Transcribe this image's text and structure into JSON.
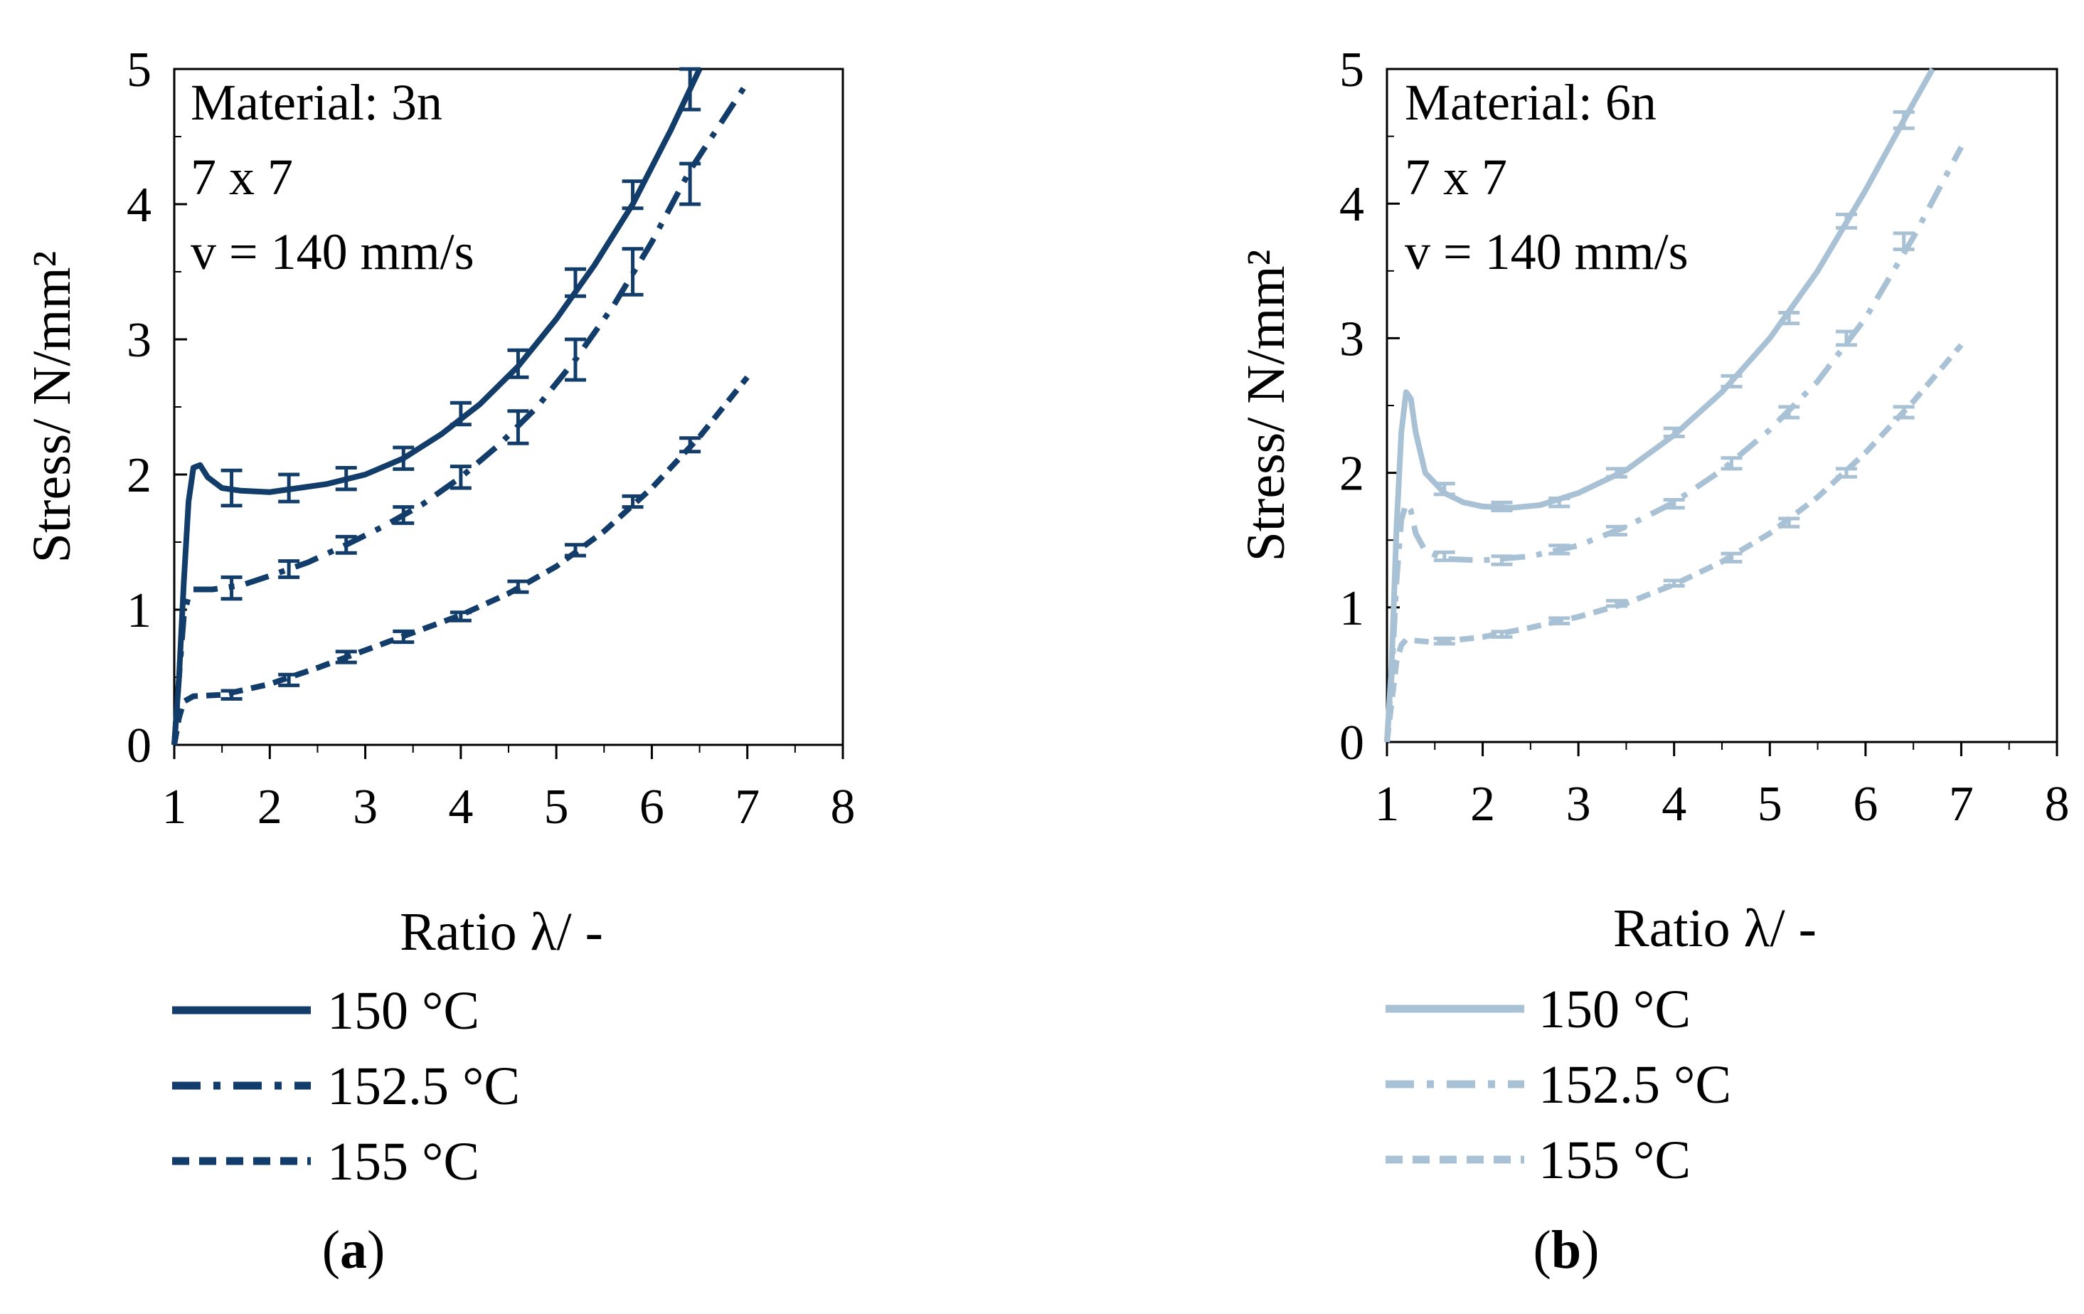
{
  "chart_data": [
    {
      "type": "line",
      "panel_id": "a",
      "caption": "(a)",
      "caption_letter": "a",
      "color": "#123c69",
      "annotations": [
        "Material: 3n",
        "7 x 7",
        "v = 140 mm/s"
      ],
      "xlabel": "Ratio λ/ -",
      "ylabel": "Stress/ N/mm²",
      "xlim": [
        1,
        8
      ],
      "ylim": [
        0,
        5
      ],
      "xticks": [
        "1",
        "2",
        "3",
        "4",
        "5",
        "6",
        "7",
        "8"
      ],
      "yticks": [
        "0",
        "1",
        "2",
        "3",
        "4",
        "5"
      ],
      "series": [
        {
          "name": "150 °C",
          "style": "solid",
          "points": [
            [
              1.0,
              0.0
            ],
            [
              1.05,
              0.5
            ],
            [
              1.1,
              1.2
            ],
            [
              1.15,
              1.8
            ],
            [
              1.2,
              2.05
            ],
            [
              1.27,
              2.07
            ],
            [
              1.35,
              1.98
            ],
            [
              1.5,
              1.9
            ],
            [
              1.7,
              1.88
            ],
            [
              2.0,
              1.87
            ],
            [
              2.3,
              1.9
            ],
            [
              2.6,
              1.93
            ],
            [
              3.0,
              2.0
            ],
            [
              3.4,
              2.12
            ],
            [
              3.8,
              2.3
            ],
            [
              4.2,
              2.52
            ],
            [
              4.6,
              2.8
            ],
            [
              5.0,
              3.15
            ],
            [
              5.4,
              3.55
            ],
            [
              5.8,
              4.0
            ],
            [
              6.2,
              4.55
            ],
            [
              6.5,
              5.0
            ]
          ],
          "error_bars": [
            [
              1.6,
              1.9,
              0.13
            ],
            [
              2.2,
              1.9,
              0.1
            ],
            [
              2.8,
              1.97,
              0.08
            ],
            [
              3.4,
              2.12,
              0.08
            ],
            [
              4.0,
              2.45,
              0.08
            ],
            [
              4.6,
              2.82,
              0.1
            ],
            [
              5.2,
              3.42,
              0.1
            ],
            [
              5.8,
              4.07,
              0.1
            ],
            [
              6.4,
              4.85,
              0.15
            ]
          ]
        },
        {
          "name": "152.5 °C",
          "style": "dashdot",
          "points": [
            [
              1.0,
              0.0
            ],
            [
              1.05,
              0.5
            ],
            [
              1.1,
              0.95
            ],
            [
              1.15,
              1.1
            ],
            [
              1.2,
              1.15
            ],
            [
              1.4,
              1.15
            ],
            [
              1.7,
              1.18
            ],
            [
              2.0,
              1.25
            ],
            [
              2.4,
              1.35
            ],
            [
              2.8,
              1.48
            ],
            [
              3.2,
              1.62
            ],
            [
              3.6,
              1.78
            ],
            [
              4.0,
              1.98
            ],
            [
              4.4,
              2.22
            ],
            [
              4.8,
              2.5
            ],
            [
              5.2,
              2.85
            ],
            [
              5.6,
              3.25
            ],
            [
              6.0,
              3.72
            ],
            [
              6.4,
              4.25
            ],
            [
              7.0,
              4.9
            ]
          ],
          "error_bars": [
            [
              1.6,
              1.16,
              0.08
            ],
            [
              2.2,
              1.3,
              0.06
            ],
            [
              2.8,
              1.48,
              0.06
            ],
            [
              3.4,
              1.7,
              0.06
            ],
            [
              4.0,
              1.98,
              0.08
            ],
            [
              4.6,
              2.35,
              0.12
            ],
            [
              5.2,
              2.85,
              0.15
            ],
            [
              5.8,
              3.5,
              0.17
            ],
            [
              6.4,
              4.15,
              0.15
            ]
          ]
        },
        {
          "name": "155 °C",
          "style": "dashed",
          "points": [
            [
              1.0,
              0.0
            ],
            [
              1.05,
              0.2
            ],
            [
              1.1,
              0.32
            ],
            [
              1.2,
              0.36
            ],
            [
              1.5,
              0.37
            ],
            [
              2.0,
              0.45
            ],
            [
              2.5,
              0.57
            ],
            [
              3.0,
              0.7
            ],
            [
              3.5,
              0.83
            ],
            [
              4.0,
              0.96
            ],
            [
              4.5,
              1.12
            ],
            [
              5.0,
              1.32
            ],
            [
              5.5,
              1.58
            ],
            [
              6.0,
              1.9
            ],
            [
              6.5,
              2.28
            ],
            [
              7.0,
              2.72
            ]
          ],
          "error_bars": [
            [
              1.6,
              0.37,
              0.03
            ],
            [
              2.2,
              0.48,
              0.04
            ],
            [
              2.8,
              0.65,
              0.04
            ],
            [
              3.4,
              0.8,
              0.04
            ],
            [
              4.0,
              0.95,
              0.03
            ],
            [
              4.6,
              1.17,
              0.04
            ],
            [
              5.2,
              1.44,
              0.04
            ],
            [
              5.8,
              1.8,
              0.04
            ],
            [
              6.4,
              2.22,
              0.05
            ]
          ]
        }
      ]
    },
    {
      "type": "line",
      "panel_id": "b",
      "caption": "(b)",
      "caption_letter": "b",
      "color": "#a9c1d4",
      "annotations": [
        "Material: 6n",
        "7 x 7",
        "v = 140 mm/s"
      ],
      "xlabel": "Ratio λ/ -",
      "ylabel": "Stress/ N/mm²",
      "xlim": [
        1,
        8
      ],
      "ylim": [
        0,
        5
      ],
      "xticks": [
        "1",
        "2",
        "3",
        "4",
        "5",
        "6",
        "7",
        "8"
      ],
      "yticks": [
        "0",
        "1",
        "2",
        "3",
        "4",
        "5"
      ],
      "series": [
        {
          "name": "150 °C",
          "style": "solid",
          "points": [
            [
              1.0,
              0.0
            ],
            [
              1.05,
              0.6
            ],
            [
              1.1,
              1.6
            ],
            [
              1.15,
              2.3
            ],
            [
              1.2,
              2.6
            ],
            [
              1.25,
              2.55
            ],
            [
              1.3,
              2.3
            ],
            [
              1.4,
              2.0
            ],
            [
              1.6,
              1.85
            ],
            [
              1.8,
              1.78
            ],
            [
              2.0,
              1.75
            ],
            [
              2.3,
              1.74
            ],
            [
              2.6,
              1.76
            ],
            [
              3.0,
              1.85
            ],
            [
              3.5,
              2.02
            ],
            [
              4.0,
              2.28
            ],
            [
              4.5,
              2.6
            ],
            [
              5.0,
              3.0
            ],
            [
              5.5,
              3.5
            ],
            [
              6.0,
              4.1
            ],
            [
              6.4,
              4.62
            ],
            [
              6.7,
              5.0
            ]
          ],
          "error_bars": [
            [
              1.6,
              1.88,
              0.04
            ],
            [
              2.2,
              1.75,
              0.03
            ],
            [
              2.8,
              1.78,
              0.03
            ],
            [
              3.4,
              2.0,
              0.03
            ],
            [
              4.0,
              2.3,
              0.03
            ],
            [
              4.6,
              2.68,
              0.04
            ],
            [
              5.2,
              3.15,
              0.04
            ],
            [
              5.8,
              3.87,
              0.05
            ],
            [
              6.4,
              4.62,
              0.06
            ]
          ]
        },
        {
          "name": "152.5 °C",
          "style": "dashdot",
          "points": [
            [
              1.0,
              0.0
            ],
            [
              1.05,
              0.5
            ],
            [
              1.1,
              1.2
            ],
            [
              1.15,
              1.65
            ],
            [
              1.2,
              1.77
            ],
            [
              1.25,
              1.72
            ],
            [
              1.3,
              1.55
            ],
            [
              1.4,
              1.42
            ],
            [
              1.6,
              1.36
            ],
            [
              2.0,
              1.35
            ],
            [
              2.5,
              1.38
            ],
            [
              3.0,
              1.46
            ],
            [
              3.5,
              1.6
            ],
            [
              4.0,
              1.78
            ],
            [
              4.5,
              2.02
            ],
            [
              5.0,
              2.32
            ],
            [
              5.5,
              2.68
            ],
            [
              6.0,
              3.15
            ],
            [
              6.5,
              3.75
            ],
            [
              7.0,
              4.42
            ]
          ],
          "error_bars": [
            [
              1.6,
              1.38,
              0.03
            ],
            [
              2.2,
              1.35,
              0.03
            ],
            [
              2.8,
              1.43,
              0.03
            ],
            [
              3.4,
              1.57,
              0.03
            ],
            [
              4.0,
              1.77,
              0.03
            ],
            [
              4.6,
              2.07,
              0.04
            ],
            [
              5.2,
              2.45,
              0.04
            ],
            [
              5.8,
              3.0,
              0.05
            ],
            [
              6.4,
              3.72,
              0.06
            ]
          ]
        },
        {
          "name": "155 °C",
          "style": "dashed",
          "points": [
            [
              1.0,
              0.0
            ],
            [
              1.05,
              0.3
            ],
            [
              1.1,
              0.6
            ],
            [
              1.15,
              0.72
            ],
            [
              1.2,
              0.76
            ],
            [
              1.5,
              0.74
            ],
            [
              2.0,
              0.78
            ],
            [
              2.5,
              0.85
            ],
            [
              3.0,
              0.93
            ],
            [
              3.5,
              1.03
            ],
            [
              4.0,
              1.17
            ],
            [
              4.5,
              1.34
            ],
            [
              5.0,
              1.55
            ],
            [
              5.5,
              1.82
            ],
            [
              6.0,
              2.15
            ],
            [
              6.5,
              2.53
            ],
            [
              7.0,
              2.95
            ]
          ],
          "error_bars": [
            [
              1.6,
              0.75,
              0.02
            ],
            [
              2.2,
              0.8,
              0.02
            ],
            [
              2.8,
              0.9,
              0.02
            ],
            [
              3.4,
              1.03,
              0.02
            ],
            [
              4.0,
              1.18,
              0.02
            ],
            [
              4.6,
              1.37,
              0.03
            ],
            [
              5.2,
              1.63,
              0.03
            ],
            [
              5.8,
              2.0,
              0.03
            ],
            [
              6.4,
              2.45,
              0.04
            ]
          ]
        }
      ]
    }
  ]
}
